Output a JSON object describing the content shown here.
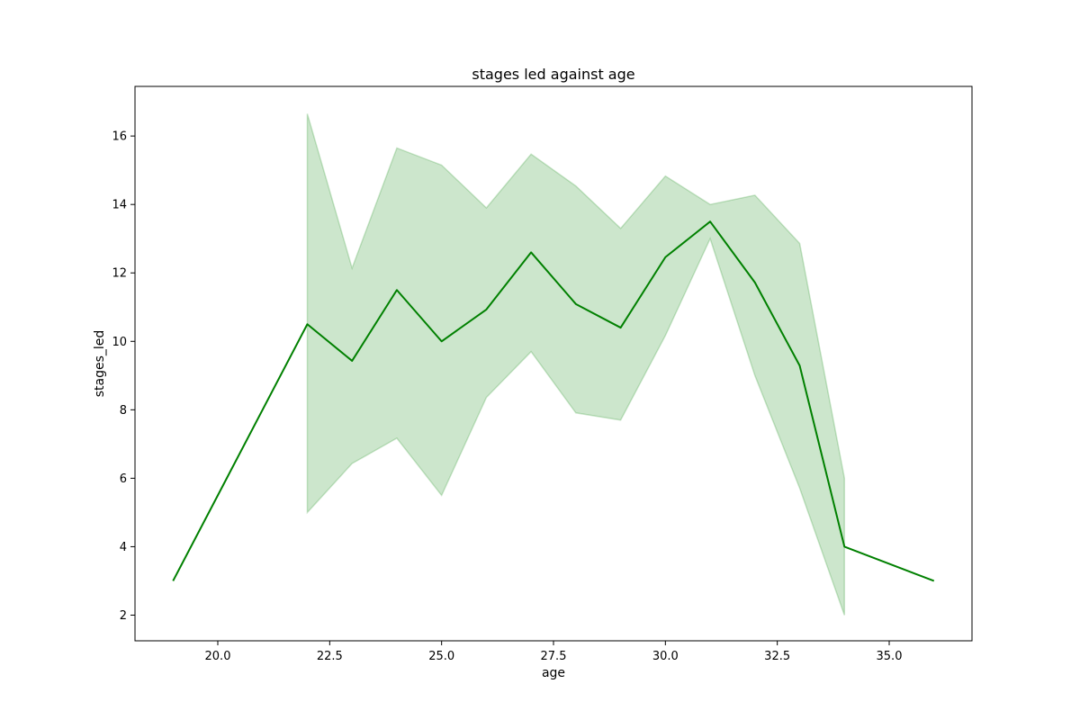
{
  "chart_data": {
    "type": "line",
    "title": "stages led against age",
    "xlabel": "age",
    "ylabel": "stages_led",
    "xlim": [
      18.15,
      36.85
    ],
    "ylim": [
      1.25,
      17.45
    ],
    "xticks": [
      20.0,
      22.5,
      25.0,
      27.5,
      30.0,
      32.5,
      35.0
    ],
    "xtick_labels": [
      "20.0",
      "22.5",
      "25.0",
      "27.5",
      "30.0",
      "32.5",
      "35.0"
    ],
    "yticks": [
      2,
      4,
      6,
      8,
      10,
      12,
      14,
      16
    ],
    "ytick_labels": [
      "2",
      "4",
      "6",
      "8",
      "10",
      "12",
      "14",
      "16"
    ],
    "grid": false,
    "colors": {
      "line": "#008000",
      "band": "#008000"
    },
    "series": [
      {
        "x": [
          19,
          22,
          23,
          24,
          25,
          26,
          27,
          28,
          29,
          30,
          31,
          32,
          33,
          34,
          36
        ],
        "values": [
          3.0,
          10.5,
          9.43,
          11.5,
          10.0,
          10.93,
          12.6,
          11.09,
          10.4,
          12.46,
          13.5,
          11.72,
          9.29,
          4.0,
          3.0
        ]
      }
    ],
    "confidence_band": {
      "x": [
        22,
        23,
        24,
        25,
        26,
        27,
        28,
        29,
        30,
        31,
        32,
        33,
        34
      ],
      "lower": [
        5.0,
        6.43,
        7.17,
        5.5,
        8.36,
        9.7,
        7.91,
        7.7,
        10.17,
        13.0,
        9.0,
        5.71,
        2.0
      ],
      "upper": [
        16.65,
        12.14,
        15.65,
        15.15,
        13.9,
        15.47,
        14.54,
        13.3,
        14.83,
        14.0,
        14.27,
        12.86,
        6.0
      ]
    }
  }
}
